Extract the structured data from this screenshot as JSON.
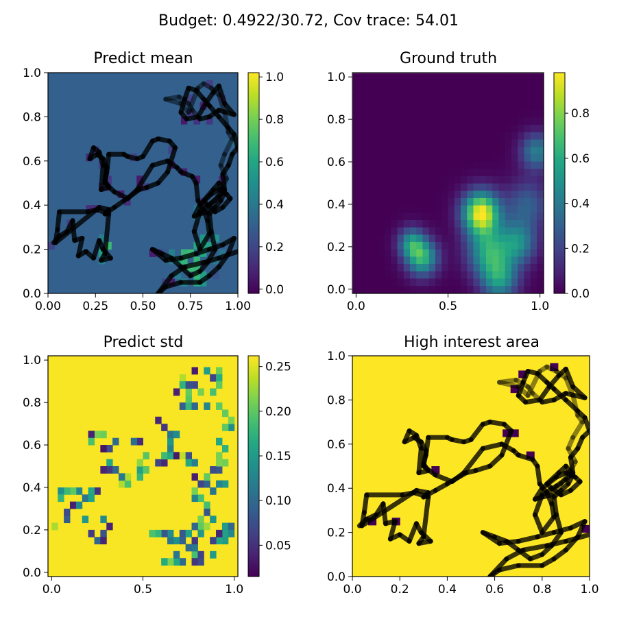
{
  "figure": {
    "suptitle": "Budget: 0.4922/30.72,  Cov trace: 54.01"
  },
  "chart_data": [
    {
      "type": "heatmap",
      "title": "Predict mean",
      "colormap": "viridis",
      "xlim": [
        0,
        1
      ],
      "ylim": [
        0,
        1
      ],
      "xticks": [
        "0.00",
        "0.25",
        "0.50",
        "0.75",
        "1.00"
      ],
      "yticks": [
        "0.0",
        "0.2",
        "0.4",
        "0.6",
        "0.8",
        "1.0"
      ],
      "xtick_values": [
        0,
        0.25,
        0.5,
        0.75,
        1.0
      ],
      "ytick_values": [
        0,
        0.2,
        0.4,
        0.6,
        0.8,
        1.0
      ],
      "background_value": 0.3,
      "colorbar": {
        "min": -0.02,
        "max": 1.02,
        "ticks": [
          "0.0",
          "0.2",
          "0.4",
          "0.6",
          "0.8",
          "1.0"
        ],
        "tick_values": [
          0,
          0.2,
          0.4,
          0.6,
          0.8,
          1.0
        ]
      },
      "path_overlay": true
    },
    {
      "type": "heatmap",
      "title": "Ground truth",
      "colormap": "viridis",
      "xlim": [
        -0.02,
        1.02
      ],
      "ylim": [
        -0.02,
        1.02
      ],
      "xticks": [
        "0.0",
        "0.5",
        "1.0"
      ],
      "yticks": [
        "0.0",
        "0.2",
        "0.4",
        "0.6",
        "0.8",
        "1.0"
      ],
      "xtick_values": [
        0,
        0.5,
        1.0
      ],
      "ytick_values": [
        0,
        0.2,
        0.4,
        0.6,
        0.8,
        1.0
      ],
      "peaks": [
        {
          "x": 0.68,
          "y": 0.36,
          "amplitude": 0.98,
          "sigma": 0.07
        },
        {
          "x": 0.36,
          "y": 0.15,
          "amplitude": 0.62,
          "sigma": 0.06
        },
        {
          "x": 0.3,
          "y": 0.22,
          "amplitude": 0.45,
          "sigma": 0.05
        },
        {
          "x": 0.72,
          "y": 0.18,
          "amplitude": 0.55,
          "sigma": 0.08
        },
        {
          "x": 0.88,
          "y": 0.22,
          "amplitude": 0.45,
          "sigma": 0.07
        },
        {
          "x": 0.78,
          "y": 0.05,
          "amplitude": 0.5,
          "sigma": 0.07
        },
        {
          "x": 0.98,
          "y": 0.65,
          "amplitude": 0.42,
          "sigma": 0.06
        },
        {
          "x": 0.93,
          "y": 0.4,
          "amplitude": 0.3,
          "sigma": 0.08
        }
      ],
      "colorbar": {
        "min": 0,
        "max": 0.98,
        "ticks": [
          "0.0",
          "0.2",
          "0.4",
          "0.6",
          "0.8"
        ],
        "tick_values": [
          0,
          0.2,
          0.4,
          0.6,
          0.8
        ]
      },
      "path_overlay": false
    },
    {
      "type": "heatmap",
      "title": "Predict std",
      "colormap": "viridis",
      "xlim": [
        -0.02,
        1.02
      ],
      "ylim": [
        -0.02,
        1.02
      ],
      "xticks": [
        "0.0",
        "0.5",
        "1.0"
      ],
      "yticks": [
        "0.0",
        "0.2",
        "0.4",
        "0.6",
        "0.8",
        "1.0"
      ],
      "xtick_values": [
        0,
        0.5,
        1.0
      ],
      "ytick_values": [
        0,
        0.2,
        0.4,
        0.6,
        0.8,
        1.0
      ],
      "background_value": 0.26,
      "colorbar": {
        "min": 0.015,
        "max": 0.262,
        "ticks": [
          "0.05",
          "0.10",
          "0.15",
          "0.20",
          "0.25"
        ],
        "tick_values": [
          0.05,
          0.1,
          0.15,
          0.2,
          0.25
        ]
      },
      "path_overlay": false
    },
    {
      "type": "heatmap",
      "title": "High interest area",
      "colormap": "viridis",
      "xlim": [
        0,
        1
      ],
      "ylim": [
        0,
        1
      ],
      "xticks": [
        "0.0",
        "0.2",
        "0.4",
        "0.6",
        "0.8",
        "1.0"
      ],
      "yticks": [
        "0.0",
        "0.2",
        "0.4",
        "0.6",
        "0.8",
        "1.0"
      ],
      "xtick_values": [
        0,
        0.2,
        0.4,
        0.6,
        0.8,
        1.0
      ],
      "ytick_values": [
        0,
        0.2,
        0.4,
        0.6,
        0.8,
        1.0
      ],
      "background_value": 1.0,
      "colorbar": null,
      "path_overlay": true
    }
  ],
  "path": {
    "color": "#000000",
    "points": [
      [
        0.03,
        0.23
      ],
      [
        0.06,
        0.26
      ],
      [
        0.1,
        0.28
      ],
      [
        0.13,
        0.33
      ],
      [
        0.14,
        0.24
      ],
      [
        0.18,
        0.25
      ],
      [
        0.16,
        0.17
      ],
      [
        0.2,
        0.19
      ],
      [
        0.24,
        0.16
      ],
      [
        0.27,
        0.24
      ],
      [
        0.29,
        0.2
      ],
      [
        0.33,
        0.16
      ],
      [
        0.28,
        0.15
      ],
      [
        0.3,
        0.18
      ],
      [
        0.32,
        0.36
      ],
      [
        0.26,
        0.38
      ],
      [
        0.21,
        0.37
      ],
      [
        0.06,
        0.37
      ],
      [
        0.05,
        0.29
      ],
      [
        0.04,
        0.23
      ],
      [
        0.27,
        0.39
      ],
      [
        0.32,
        0.38
      ],
      [
        0.3,
        0.36
      ],
      [
        0.35,
        0.39
      ],
      [
        0.4,
        0.42
      ],
      [
        0.48,
        0.47
      ],
      [
        0.52,
        0.48
      ],
      [
        0.58,
        0.5
      ],
      [
        0.63,
        0.55
      ],
      [
        0.67,
        0.66
      ],
      [
        0.64,
        0.69
      ],
      [
        0.58,
        0.7
      ],
      [
        0.55,
        0.69
      ],
      [
        0.5,
        0.62
      ],
      [
        0.47,
        0.61
      ],
      [
        0.42,
        0.62
      ],
      [
        0.4,
        0.63
      ],
      [
        0.32,
        0.63
      ],
      [
        0.31,
        0.55
      ],
      [
        0.3,
        0.51
      ],
      [
        0.32,
        0.48
      ],
      [
        0.28,
        0.47
      ],
      [
        0.29,
        0.58
      ],
      [
        0.27,
        0.64
      ],
      [
        0.24,
        0.66
      ],
      [
        0.22,
        0.61
      ],
      [
        0.26,
        0.63
      ],
      [
        0.29,
        0.61
      ],
      [
        0.31,
        0.57
      ],
      [
        0.3,
        0.5
      ],
      [
        0.35,
        0.46
      ],
      [
        0.42,
        0.43
      ],
      [
        0.47,
        0.47
      ],
      [
        0.55,
        0.58
      ],
      [
        0.63,
        0.6
      ],
      [
        0.68,
        0.57
      ],
      [
        0.7,
        0.55
      ],
      [
        0.76,
        0.53
      ],
      [
        0.78,
        0.5
      ],
      [
        0.79,
        0.42
      ],
      [
        0.82,
        0.38
      ],
      [
        0.84,
        0.33
      ],
      [
        0.85,
        0.27
      ],
      [
        0.8,
        0.2
      ],
      [
        0.77,
        0.28
      ],
      [
        0.8,
        0.37
      ],
      [
        0.86,
        0.41
      ],
      [
        0.9,
        0.44
      ],
      [
        0.93,
        0.47
      ],
      [
        0.92,
        0.54
      ],
      [
        0.95,
        0.58
      ],
      [
        0.97,
        0.63
      ],
      [
        1.0,
        0.66
      ],
      [
        0.98,
        0.72
      ],
      [
        0.95,
        0.75
      ],
      [
        0.9,
        0.8
      ],
      [
        0.85,
        0.85
      ],
      [
        0.82,
        0.88
      ],
      [
        0.78,
        0.92
      ],
      [
        0.74,
        0.93
      ],
      [
        0.72,
        0.88
      ],
      [
        0.7,
        0.82
      ],
      [
        0.73,
        0.79
      ],
      [
        0.79,
        0.8
      ],
      [
        0.83,
        0.86
      ],
      [
        0.87,
        0.91
      ],
      [
        0.9,
        0.94
      ],
      [
        0.93,
        0.86
      ],
      [
        0.98,
        0.81
      ],
      [
        0.9,
        0.83
      ],
      [
        0.85,
        0.8
      ],
      [
        0.8,
        0.79
      ],
      [
        0.76,
        0.83
      ],
      [
        0.74,
        0.86
      ],
      [
        0.69,
        0.89
      ],
      [
        0.62,
        0.88
      ],
      [
        0.7,
        0.86
      ],
      [
        0.74,
        0.82
      ],
      [
        0.79,
        0.93
      ],
      [
        0.82,
        0.95
      ],
      [
        0.86,
        0.93
      ],
      [
        0.9,
        0.9
      ],
      [
        0.93,
        0.82
      ],
      [
        0.95,
        0.73
      ],
      [
        0.97,
        0.7
      ],
      [
        0.93,
        0.63
      ],
      [
        0.91,
        0.58
      ],
      [
        0.94,
        0.52
      ],
      [
        0.92,
        0.48
      ],
      [
        0.88,
        0.42
      ],
      [
        0.84,
        0.37
      ],
      [
        0.8,
        0.36
      ],
      [
        0.77,
        0.35
      ],
      [
        0.8,
        0.4
      ],
      [
        0.86,
        0.45
      ],
      [
        0.9,
        0.47
      ],
      [
        0.94,
        0.45
      ],
      [
        0.96,
        0.43
      ],
      [
        0.92,
        0.39
      ],
      [
        0.88,
        0.37
      ],
      [
        0.84,
        0.4
      ],
      [
        0.82,
        0.42
      ],
      [
        0.87,
        0.47
      ],
      [
        0.9,
        0.5
      ],
      [
        0.93,
        0.46
      ],
      [
        0.91,
        0.42
      ],
      [
        0.88,
        0.39
      ],
      [
        0.85,
        0.36
      ],
      [
        0.86,
        0.28
      ],
      [
        0.88,
        0.2
      ],
      [
        0.84,
        0.14
      ],
      [
        0.8,
        0.1
      ],
      [
        0.75,
        0.08
      ],
      [
        0.7,
        0.12
      ],
      [
        0.65,
        0.16
      ],
      [
        0.6,
        0.18
      ],
      [
        0.55,
        0.2
      ],
      [
        0.62,
        0.15
      ],
      [
        0.7,
        0.16
      ],
      [
        0.78,
        0.18
      ],
      [
        0.85,
        0.2
      ],
      [
        0.92,
        0.22
      ],
      [
        0.98,
        0.25
      ],
      [
        0.95,
        0.18
      ],
      [
        0.9,
        0.12
      ],
      [
        0.85,
        0.08
      ],
      [
        0.8,
        0.05
      ],
      [
        0.7,
        0.05
      ],
      [
        0.62,
        0.03
      ],
      [
        0.58,
        0.0
      ],
      [
        0.65,
        0.08
      ],
      [
        0.72,
        0.12
      ],
      [
        0.82,
        0.14
      ],
      [
        0.9,
        0.16
      ],
      [
        1.0,
        0.19
      ]
    ]
  }
}
